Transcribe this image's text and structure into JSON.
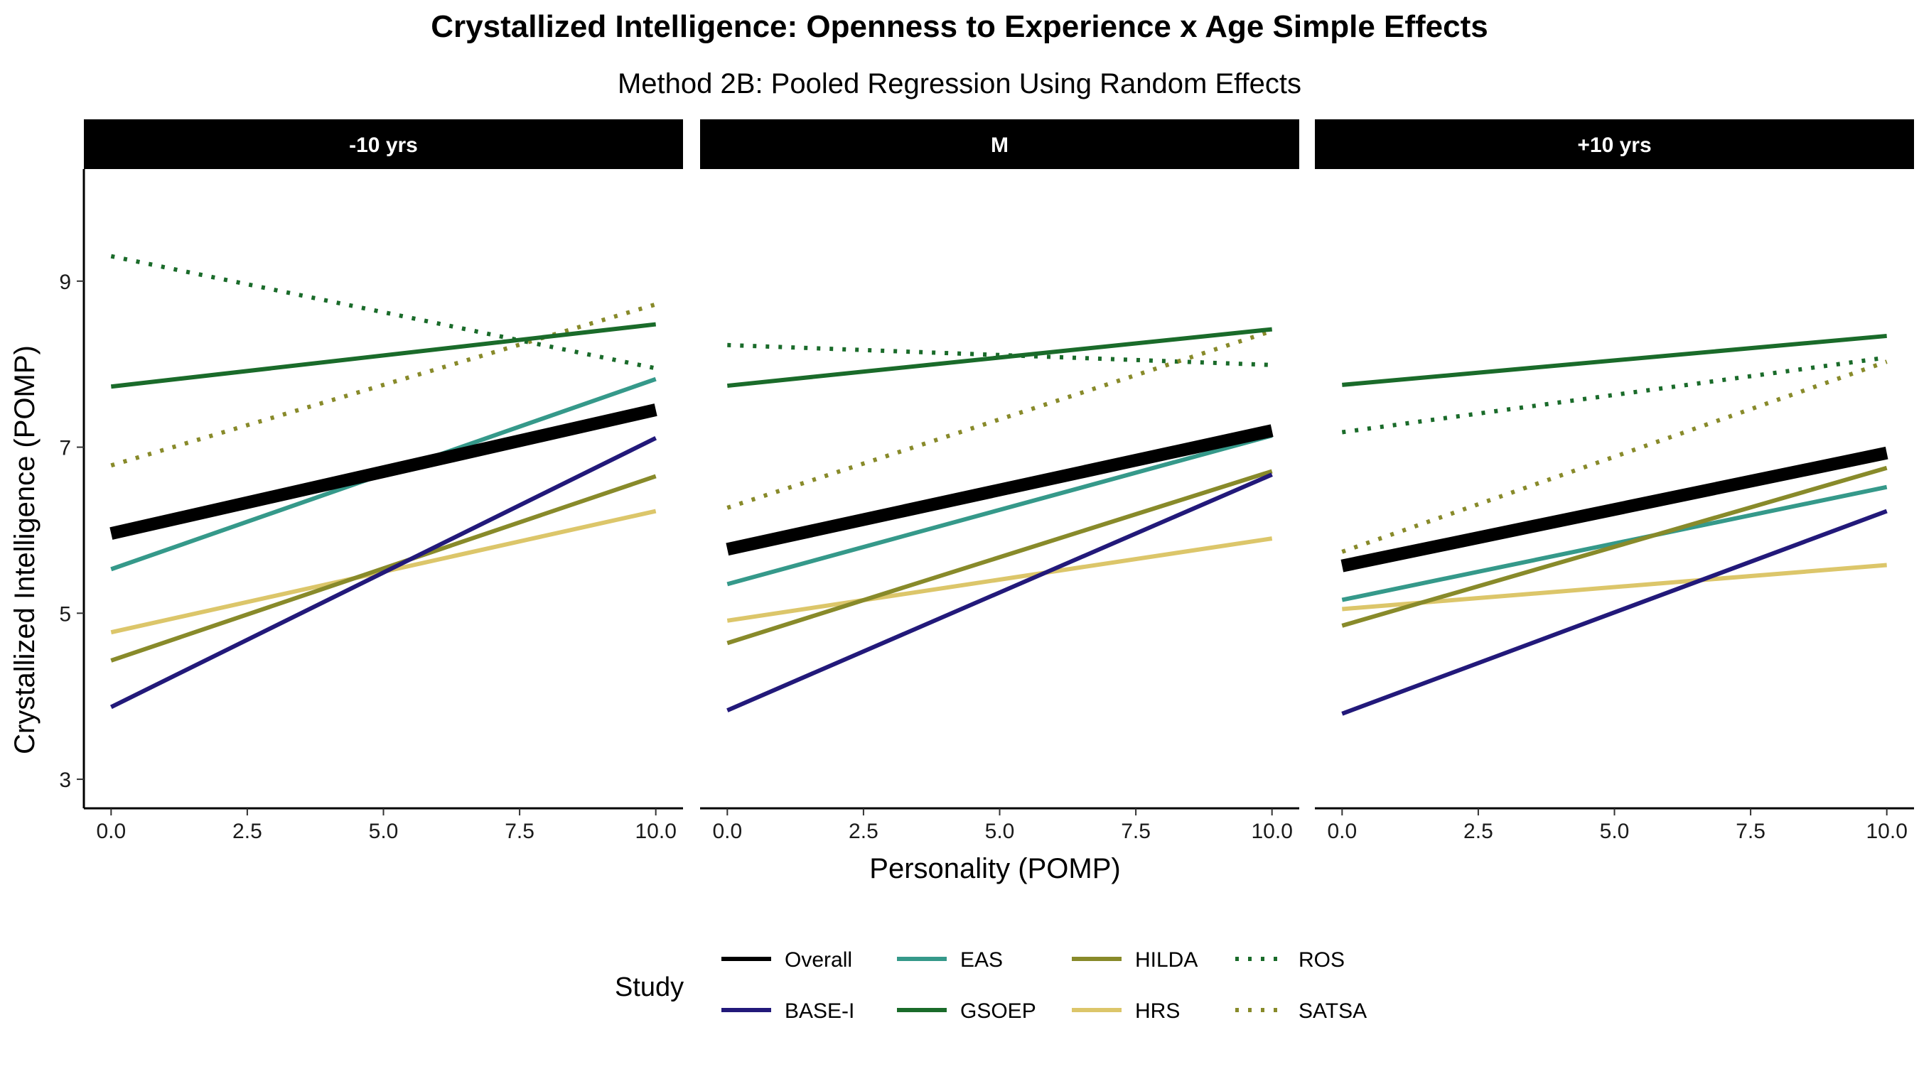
{
  "chart_data": {
    "type": "line",
    "title": "Crystallized Intelligence: Openness to Experience x Age Simple Effects",
    "subtitle": "Method 2B: Pooled Regression Using Random Effects",
    "xlabel": "Personality (POMP)",
    "ylabel": "Crystallized Intelligence (POMP)",
    "xlim": [
      -0.5,
      10.5
    ],
    "ylim": [
      2.65,
      10.35
    ],
    "xticks": [
      0,
      2.5,
      5,
      7.5,
      10
    ],
    "xtick_labels": [
      "0.0",
      "2.5",
      "5.0",
      "7.5",
      "10.0"
    ],
    "yticks": [
      3,
      5,
      7,
      9
    ],
    "ytick_labels": [
      "3",
      "5",
      "7",
      "9"
    ],
    "grid": false,
    "legend": {
      "title": "Study",
      "position": "bottom",
      "entries": [
        {
          "name": "Overall",
          "color": "#000000",
          "linetype": "solid"
        },
        {
          "name": "BASE-I",
          "color": "#22197a",
          "linetype": "solid"
        },
        {
          "name": "EAS",
          "color": "#35998a",
          "linetype": "solid"
        },
        {
          "name": "GSOEP",
          "color": "#1a6b2a",
          "linetype": "solid"
        },
        {
          "name": "HILDA",
          "color": "#888a2a",
          "linetype": "solid"
        },
        {
          "name": "HRS",
          "color": "#dcc66a",
          "linetype": "solid"
        },
        {
          "name": "ROS",
          "color": "#1a6b2a",
          "linetype": "dotted"
        },
        {
          "name": "SATSA",
          "color": "#888a2a",
          "linetype": "dotted"
        }
      ]
    },
    "panels": [
      {
        "label": "-10 yrs",
        "series": [
          {
            "name": "ROS",
            "x": [
              0,
              10
            ],
            "y": [
              9.3,
              7.95
            ]
          },
          {
            "name": "SATSA",
            "x": [
              0,
              10
            ],
            "y": [
              6.78,
              8.72
            ]
          },
          {
            "name": "GSOEP",
            "x": [
              0,
              10
            ],
            "y": [
              7.73,
              8.48
            ]
          },
          {
            "name": "EAS",
            "x": [
              0,
              10
            ],
            "y": [
              5.53,
              7.82
            ]
          },
          {
            "name": "HRS",
            "x": [
              0,
              10
            ],
            "y": [
              4.77,
              6.23
            ]
          },
          {
            "name": "HILDA",
            "x": [
              0,
              10
            ],
            "y": [
              4.43,
              6.65
            ]
          },
          {
            "name": "BASE-I",
            "x": [
              0,
              10
            ],
            "y": [
              3.87,
              7.11
            ]
          },
          {
            "name": "Overall",
            "x": [
              0,
              10
            ],
            "y": [
              5.96,
              7.45
            ]
          }
        ]
      },
      {
        "label": "M",
        "series": [
          {
            "name": "ROS",
            "x": [
              0,
              10
            ],
            "y": [
              8.23,
              7.99
            ]
          },
          {
            "name": "SATSA",
            "x": [
              0,
              10
            ],
            "y": [
              6.27,
              8.4
            ]
          },
          {
            "name": "GSOEP",
            "x": [
              0,
              10
            ],
            "y": [
              7.74,
              8.42
            ]
          },
          {
            "name": "EAS",
            "x": [
              0,
              10
            ],
            "y": [
              5.35,
              7.14
            ]
          },
          {
            "name": "HRS",
            "x": [
              0,
              10
            ],
            "y": [
              4.91,
              5.9
            ]
          },
          {
            "name": "HILDA",
            "x": [
              0,
              10
            ],
            "y": [
              4.64,
              6.71
            ]
          },
          {
            "name": "BASE-I",
            "x": [
              0,
              10
            ],
            "y": [
              3.83,
              6.67
            ]
          },
          {
            "name": "Overall",
            "x": [
              0,
              10
            ],
            "y": [
              5.77,
              7.2
            ]
          }
        ]
      },
      {
        "label": "+10 yrs",
        "series": [
          {
            "name": "ROS",
            "x": [
              0,
              10
            ],
            "y": [
              7.18,
              8.08
            ]
          },
          {
            "name": "SATSA",
            "x": [
              0,
              10
            ],
            "y": [
              5.74,
              8.03
            ]
          },
          {
            "name": "GSOEP",
            "x": [
              0,
              10
            ],
            "y": [
              7.75,
              8.34
            ]
          },
          {
            "name": "EAS",
            "x": [
              0,
              10
            ],
            "y": [
              5.16,
              6.52
            ]
          },
          {
            "name": "HRS",
            "x": [
              0,
              10
            ],
            "y": [
              5.05,
              5.58
            ]
          },
          {
            "name": "HILDA",
            "x": [
              0,
              10
            ],
            "y": [
              4.85,
              6.75
            ]
          },
          {
            "name": "BASE-I",
            "x": [
              0,
              10
            ],
            "y": [
              3.79,
              6.23
            ]
          },
          {
            "name": "Overall",
            "x": [
              0,
              10
            ],
            "y": [
              5.57,
              6.93
            ]
          }
        ]
      }
    ]
  }
}
